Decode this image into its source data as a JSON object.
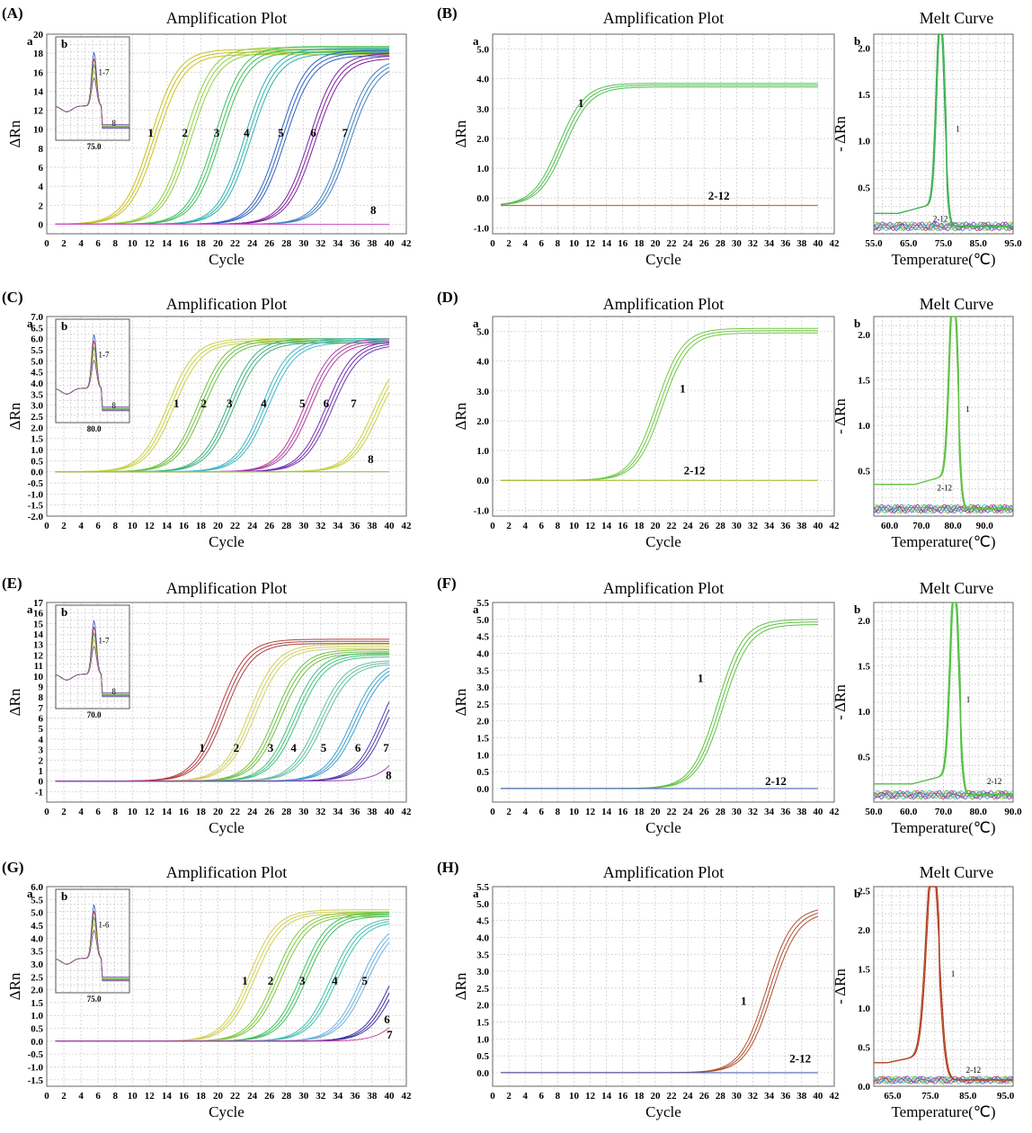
{
  "chart_data": [
    {
      "panel": "(A)",
      "sub": "a",
      "type": "line",
      "title": "Amplification Plot",
      "xlabel": "Cycle",
      "ylabel": "ΔRn",
      "xlim": [
        0,
        42
      ],
      "ylim": [
        -1,
        20
      ],
      "xticks": [
        0,
        2,
        4,
        6,
        8,
        10,
        12,
        14,
        16,
        18,
        20,
        22,
        24,
        26,
        28,
        30,
        32,
        34,
        36,
        38,
        40,
        42
      ],
      "yticks": [
        0,
        2,
        4,
        6,
        8,
        10,
        12,
        14,
        16,
        18,
        20
      ],
      "series": [
        {
          "label": "1",
          "ct": 12.5,
          "plateau": 18.4,
          "color": "#c8c020",
          "label_x": 11.8,
          "label_y": 9.2
        },
        {
          "label": "2",
          "ct": 16.5,
          "plateau": 18.6,
          "color": "#90d040",
          "label_x": 15.8,
          "label_y": 9.2
        },
        {
          "label": "3",
          "ct": 20.0,
          "plateau": 18.7,
          "color": "#40c060",
          "label_x": 19.5,
          "label_y": 9.2
        },
        {
          "label": "4",
          "ct": 23.5,
          "plateau": 18.5,
          "color": "#30b0b0",
          "label_x": 23.0,
          "label_y": 9.2
        },
        {
          "label": "5",
          "ct": 27.5,
          "plateau": 18.3,
          "color": "#3060c0",
          "label_x": 27.0,
          "label_y": 9.2
        },
        {
          "label": "6",
          "ct": 31.0,
          "plateau": 18.0,
          "color": "#8020a0",
          "label_x": 30.8,
          "label_y": 9.2
        },
        {
          "label": "7",
          "ct": 35.0,
          "plateau": 17.5,
          "color": "#4080c0",
          "label_x": 34.5,
          "label_y": 9.2
        },
        {
          "label": "8",
          "ct": 0,
          "plateau": 0,
          "color": "#d060d0",
          "label_x": 37.8,
          "label_y": 1.1
        }
      ],
      "inset": {
        "sub": "b",
        "tick": "75.0",
        "note": "1-7",
        "note2": "8"
      }
    },
    {
      "panel": "(B)",
      "sub": "a",
      "type": "line",
      "title": "Amplification Plot",
      "xlabel": "Cycle",
      "ylabel": "ΔRn",
      "xlim": [
        0,
        42
      ],
      "ylim": [
        -1.2,
        5.5
      ],
      "xticks": [
        0,
        2,
        4,
        6,
        8,
        10,
        12,
        14,
        16,
        18,
        20,
        22,
        24,
        26,
        28,
        30,
        32,
        34,
        36,
        38,
        40,
        42
      ],
      "yticks": [
        -1.0,
        0.0,
        1.0,
        2.0,
        3.0,
        4.0,
        5.0
      ],
      "baseline": -0.25,
      "series": [
        {
          "label": "1",
          "ct": 8.5,
          "plateau": 4.1,
          "color": "#50c050",
          "label_x": 10.5,
          "label_y": 3.05
        },
        {
          "label": "2-12",
          "ct": 0,
          "plateau": 0,
          "color": "#c07040",
          "label_x": 26.5,
          "label_y": -0.05
        }
      ]
    },
    {
      "panel": "(B)",
      "sub": "b",
      "type": "line",
      "title": "Melt Curve",
      "xlabel": "Temperature(℃)",
      "ylabel": "- ΔRn",
      "xlim": [
        55,
        95
      ],
      "ylim": [
        0,
        2.15
      ],
      "xticks": [
        "55.0",
        "65.0",
        "75.0",
        "85.0",
        "95.0"
      ],
      "xtick_vals": [
        55,
        65,
        75,
        85,
        95
      ],
      "yticks": [
        0.5,
        1.0,
        1.5,
        2.0
      ],
      "peak_t": 74,
      "peak_h": 2.05,
      "peak_w": 1.6,
      "base": 0.22,
      "color": "#40b050",
      "labels": [
        {
          "text": "1",
          "x": 78.5,
          "y": 1.1
        },
        {
          "text": "2-12",
          "x": 72,
          "y": 0.13
        }
      ]
    },
    {
      "panel": "(C)",
      "sub": "a",
      "type": "line",
      "title": "Amplification Plot",
      "xlabel": "Cycle",
      "ylabel": "ΔRn",
      "xlim": [
        0,
        42
      ],
      "ylim": [
        -2.0,
        7.0
      ],
      "xticks": [
        0,
        2,
        4,
        6,
        8,
        10,
        12,
        14,
        16,
        18,
        20,
        22,
        24,
        26,
        28,
        30,
        32,
        34,
        36,
        38,
        40,
        42
      ],
      "yticks": [
        -2.0,
        -1.5,
        -1.0,
        -0.5,
        0.0,
        0.5,
        1.0,
        1.5,
        2.0,
        2.5,
        3.0,
        3.5,
        4.0,
        4.5,
        5.0,
        5.5,
        6.0,
        6.5,
        7.0
      ],
      "series": [
        {
          "label": "1",
          "ct": 14.5,
          "plateau": 6.0,
          "color": "#c8d040",
          "label_x": 14.8,
          "label_y": 2.9
        },
        {
          "label": "2",
          "ct": 18.0,
          "plateau": 6.0,
          "color": "#70c040",
          "label_x": 18.0,
          "label_y": 2.9
        },
        {
          "label": "3",
          "ct": 21.5,
          "plateau": 6.0,
          "color": "#40b080",
          "label_x": 21.0,
          "label_y": 2.9
        },
        {
          "label": "4",
          "ct": 25.5,
          "plateau": 6.0,
          "color": "#40b8c0",
          "label_x": 25.0,
          "label_y": 2.9
        },
        {
          "label": "5",
          "ct": 30.5,
          "plateau": 6.0,
          "color": "#b040a0",
          "label_x": 29.5,
          "label_y": 2.9
        },
        {
          "label": "6",
          "ct": 33.0,
          "plateau": 5.9,
          "color": "#7030b0",
          "label_x": 32.3,
          "label_y": 2.9
        },
        {
          "label": "7",
          "ct": 38.5,
          "plateau": 5.5,
          "color": "#c8d040",
          "label_x": 35.5,
          "label_y": 2.9
        },
        {
          "label": "8",
          "ct": 0,
          "plateau": 0,
          "color": "#90c060",
          "label_x": 37.5,
          "label_y": 0.4
        }
      ],
      "inset": {
        "sub": "b",
        "tick": "80.0",
        "note": "1-7",
        "note2": "8"
      }
    },
    {
      "panel": "(D)",
      "sub": "a",
      "type": "line",
      "title": "Amplification Plot",
      "xlabel": "Cycle",
      "ylabel": "ΔRn",
      "xlim": [
        0,
        42
      ],
      "ylim": [
        -1.2,
        5.5
      ],
      "xticks": [
        0,
        2,
        4,
        6,
        8,
        10,
        12,
        14,
        16,
        18,
        20,
        22,
        24,
        26,
        28,
        30,
        32,
        34,
        36,
        38,
        40,
        42
      ],
      "yticks": [
        -1.0,
        0.0,
        1.0,
        2.0,
        3.0,
        4.0,
        5.0
      ],
      "baseline": 0.0,
      "series": [
        {
          "label": "1",
          "ct": 20.5,
          "plateau": 5.1,
          "color": "#70c840",
          "label_x": 23.0,
          "label_y": 2.95
        },
        {
          "label": "2-12",
          "ct": 0,
          "plateau": 0,
          "color": "#b0c040",
          "label_x": 23.5,
          "label_y": 0.2
        }
      ]
    },
    {
      "panel": "(D)",
      "sub": "b",
      "type": "line",
      "title": "Melt Curve",
      "xlabel": "Temperature(℃)",
      "ylabel": "- ΔRn",
      "xlim": [
        55,
        99
      ],
      "ylim": [
        0,
        2.2
      ],
      "xticks": [
        "60.0",
        "70.0",
        "80.0",
        "90.0"
      ],
      "xtick_vals": [
        60,
        70,
        80,
        90
      ],
      "yticks": [
        0.5,
        1.0,
        1.5,
        2.0
      ],
      "peak_t": 80,
      "peak_h": 2.15,
      "peak_w": 1.8,
      "base": 0.35,
      "color": "#60c040",
      "labels": [
        {
          "text": "1",
          "x": 84,
          "y": 1.15
        },
        {
          "text": "2-12",
          "x": 75,
          "y": 0.28
        }
      ]
    },
    {
      "panel": "(E)",
      "sub": "a",
      "type": "line",
      "title": "Amplification Plot",
      "xlabel": "Cycle",
      "ylabel": "ΔRn",
      "xlim": [
        0,
        42
      ],
      "ylim": [
        -2,
        17
      ],
      "xticks": [
        0,
        2,
        4,
        6,
        8,
        10,
        12,
        14,
        16,
        18,
        20,
        22,
        24,
        26,
        28,
        30,
        32,
        34,
        36,
        38,
        40,
        42
      ],
      "yticks": [
        -1,
        0,
        1,
        2,
        3,
        4,
        5,
        6,
        7,
        8,
        9,
        10,
        11,
        12,
        13,
        14,
        15,
        16,
        17
      ],
      "series": [
        {
          "label": "1",
          "ct": 20.5,
          "plateau": 13.5,
          "color": "#b04040",
          "label_x": 17.8,
          "label_y": 2.8
        },
        {
          "label": "2",
          "ct": 24.0,
          "plateau": 13.0,
          "color": "#d0d060",
          "label_x": 21.8,
          "label_y": 2.8
        },
        {
          "label": "3",
          "ct": 27.0,
          "plateau": 12.5,
          "color": "#70c040",
          "label_x": 25.8,
          "label_y": 2.8
        },
        {
          "label": "4",
          "ct": 29.0,
          "plateau": 12.2,
          "color": "#40c080",
          "label_x": 28.5,
          "label_y": 2.8
        },
        {
          "label": "5",
          "ct": 32.0,
          "plateau": 11.5,
          "color": "#60c0a0",
          "label_x": 32.0,
          "label_y": 2.8
        },
        {
          "label": "6",
          "ct": 36.0,
          "plateau": 11.5,
          "color": "#40a0d0",
          "label_x": 36.0,
          "label_y": 2.8
        },
        {
          "label": "7",
          "ct": 39.5,
          "plateau": 12.0,
          "color": "#5040b0",
          "label_x": 39.3,
          "label_y": 2.8
        },
        {
          "label": "8",
          "ct": 43.0,
          "plateau": 11.0,
          "color": "#a040b0",
          "label_x": 39.6,
          "label_y": 0.2
        }
      ],
      "inset": {
        "sub": "b",
        "tick": "70.0",
        "note": "1-7",
        "note2": "8"
      }
    },
    {
      "panel": "(F)",
      "sub": "a",
      "type": "line",
      "title": "Amplification Plot",
      "xlabel": "Cycle",
      "ylabel": "ΔRn",
      "xlim": [
        0,
        42
      ],
      "ylim": [
        -0.4,
        5.5
      ],
      "xticks": [
        0,
        2,
        4,
        6,
        8,
        10,
        12,
        14,
        16,
        18,
        20,
        22,
        24,
        26,
        28,
        30,
        32,
        34,
        36,
        38,
        40,
        42
      ],
      "yticks": [
        0.0,
        0.5,
        1.0,
        1.5,
        2.0,
        2.5,
        3.0,
        3.5,
        4.0,
        4.5,
        5.0,
        5.5
      ],
      "baseline": 0.0,
      "series": [
        {
          "label": "1",
          "ct": 28.0,
          "plateau": 5.0,
          "color": "#60c040",
          "label_x": 25.2,
          "label_y": 3.15
        },
        {
          "label": "2-12",
          "ct": 0,
          "plateau": 0,
          "color": "#5060c0",
          "label_x": 33.5,
          "label_y": 0.1
        }
      ]
    },
    {
      "panel": "(F)",
      "sub": "b",
      "type": "line",
      "title": "Melt Curve",
      "xlabel": "Temperature(℃)",
      "ylabel": "- ΔRn",
      "xlim": [
        50,
        90
      ],
      "ylim": [
        0,
        2.2
      ],
      "xticks": [
        "50.0",
        "60.0",
        "70.0",
        "80.0",
        "90.0"
      ],
      "xtick_vals": [
        50,
        60,
        70,
        80,
        90
      ],
      "yticks": [
        0.5,
        1.0,
        1.5,
        2.0
      ],
      "peak_t": 73,
      "peak_h": 2.15,
      "peak_w": 1.7,
      "base": 0.2,
      "color": "#50c040",
      "labels": [
        {
          "text": "1",
          "x": 76.5,
          "y": 1.1
        },
        {
          "text": "2-12",
          "x": 82.5,
          "y": 0.2
        }
      ]
    },
    {
      "panel": "(G)",
      "sub": "a",
      "type": "line",
      "title": "Amplification Plot",
      "xlabel": "Cycle",
      "ylabel": "ΔRn",
      "xlim": [
        0,
        42
      ],
      "ylim": [
        -1.75,
        6.0
      ],
      "xticks": [
        0,
        2,
        4,
        6,
        8,
        10,
        12,
        14,
        16,
        18,
        20,
        22,
        24,
        26,
        28,
        30,
        32,
        34,
        36,
        38,
        40,
        42
      ],
      "yticks": [
        -1.5,
        -1.0,
        -0.5,
        0.0,
        0.5,
        1.0,
        1.5,
        2.0,
        2.5,
        3.0,
        3.5,
        4.0,
        4.5,
        5.0,
        5.5,
        6.0
      ],
      "series": [
        {
          "label": "1",
          "ct": 24.0,
          "plateau": 5.1,
          "color": "#d0d050",
          "label_x": 22.8,
          "label_y": 2.2
        },
        {
          "label": "2",
          "ct": 27.0,
          "plateau": 5.0,
          "color": "#80c840",
          "label_x": 25.8,
          "label_y": 2.2
        },
        {
          "label": "3",
          "ct": 30.0,
          "plateau": 5.0,
          "color": "#40c060",
          "label_x": 29.5,
          "label_y": 2.2
        },
        {
          "label": "4",
          "ct": 33.5,
          "plateau": 4.8,
          "color": "#40c0b0",
          "label_x": 33.3,
          "label_y": 2.2
        },
        {
          "label": "5",
          "ct": 37.0,
          "plateau": 4.7,
          "color": "#70b0e0",
          "label_x": 36.8,
          "label_y": 2.2
        },
        {
          "label": "6",
          "ct": 40.5,
          "plateau": 4.5,
          "color": "#4030a0",
          "label_x": 39.4,
          "label_y": 0.7
        },
        {
          "label": "7",
          "ct": 43.0,
          "plateau": 4.0,
          "color": "#d040a0",
          "label_x": 39.7,
          "label_y": 0.1
        }
      ],
      "inset": {
        "sub": "b",
        "tick": "75.0",
        "note": "1-6",
        "note2": ""
      }
    },
    {
      "panel": "(H)",
      "sub": "a",
      "type": "line",
      "title": "Amplification Plot",
      "xlabel": "Cycle",
      "ylabel": "ΔRn",
      "xlim": [
        0,
        42
      ],
      "ylim": [
        -0.4,
        5.5
      ],
      "xticks": [
        0,
        2,
        4,
        6,
        8,
        10,
        12,
        14,
        16,
        18,
        20,
        22,
        24,
        26,
        28,
        30,
        32,
        34,
        36,
        38,
        40,
        42
      ],
      "yticks": [
        0.0,
        0.5,
        1.0,
        1.5,
        2.0,
        2.5,
        3.0,
        3.5,
        4.0,
        4.5,
        5.0,
        5.5
      ],
      "baseline": 0.0,
      "series": [
        {
          "label": "1",
          "ct": 34.0,
          "plateau": 4.9,
          "color": "#b05030",
          "label_x": 30.5,
          "label_y": 2.0
        },
        {
          "label": "2-12",
          "ct": 0,
          "plateau": 0,
          "color": "#5060c0",
          "label_x": 36.5,
          "label_y": 0.3
        }
      ]
    },
    {
      "panel": "(H)",
      "sub": "b",
      "type": "line",
      "title": "Melt Curve",
      "xlabel": "Temperature(℃)",
      "ylabel": "- ΔRn",
      "xlim": [
        60,
        97
      ],
      "ylim": [
        0,
        2.55
      ],
      "xticks": [
        "65.0",
        "75.0",
        "85.0",
        "95.0"
      ],
      "xtick_vals": [
        65,
        75,
        85,
        95
      ],
      "yticks": [
        0.0,
        0.5,
        1.0,
        1.5,
        2.0,
        2.5
      ],
      "peak_t": 75.5,
      "peak_h": 2.5,
      "peak_w": 2.4,
      "base": 0.3,
      "color": "#b04020",
      "labels": [
        {
          "text": "1",
          "x": 80.5,
          "y": 1.4
        },
        {
          "text": "2-12",
          "x": 84.5,
          "y": 0.17
        }
      ]
    }
  ]
}
